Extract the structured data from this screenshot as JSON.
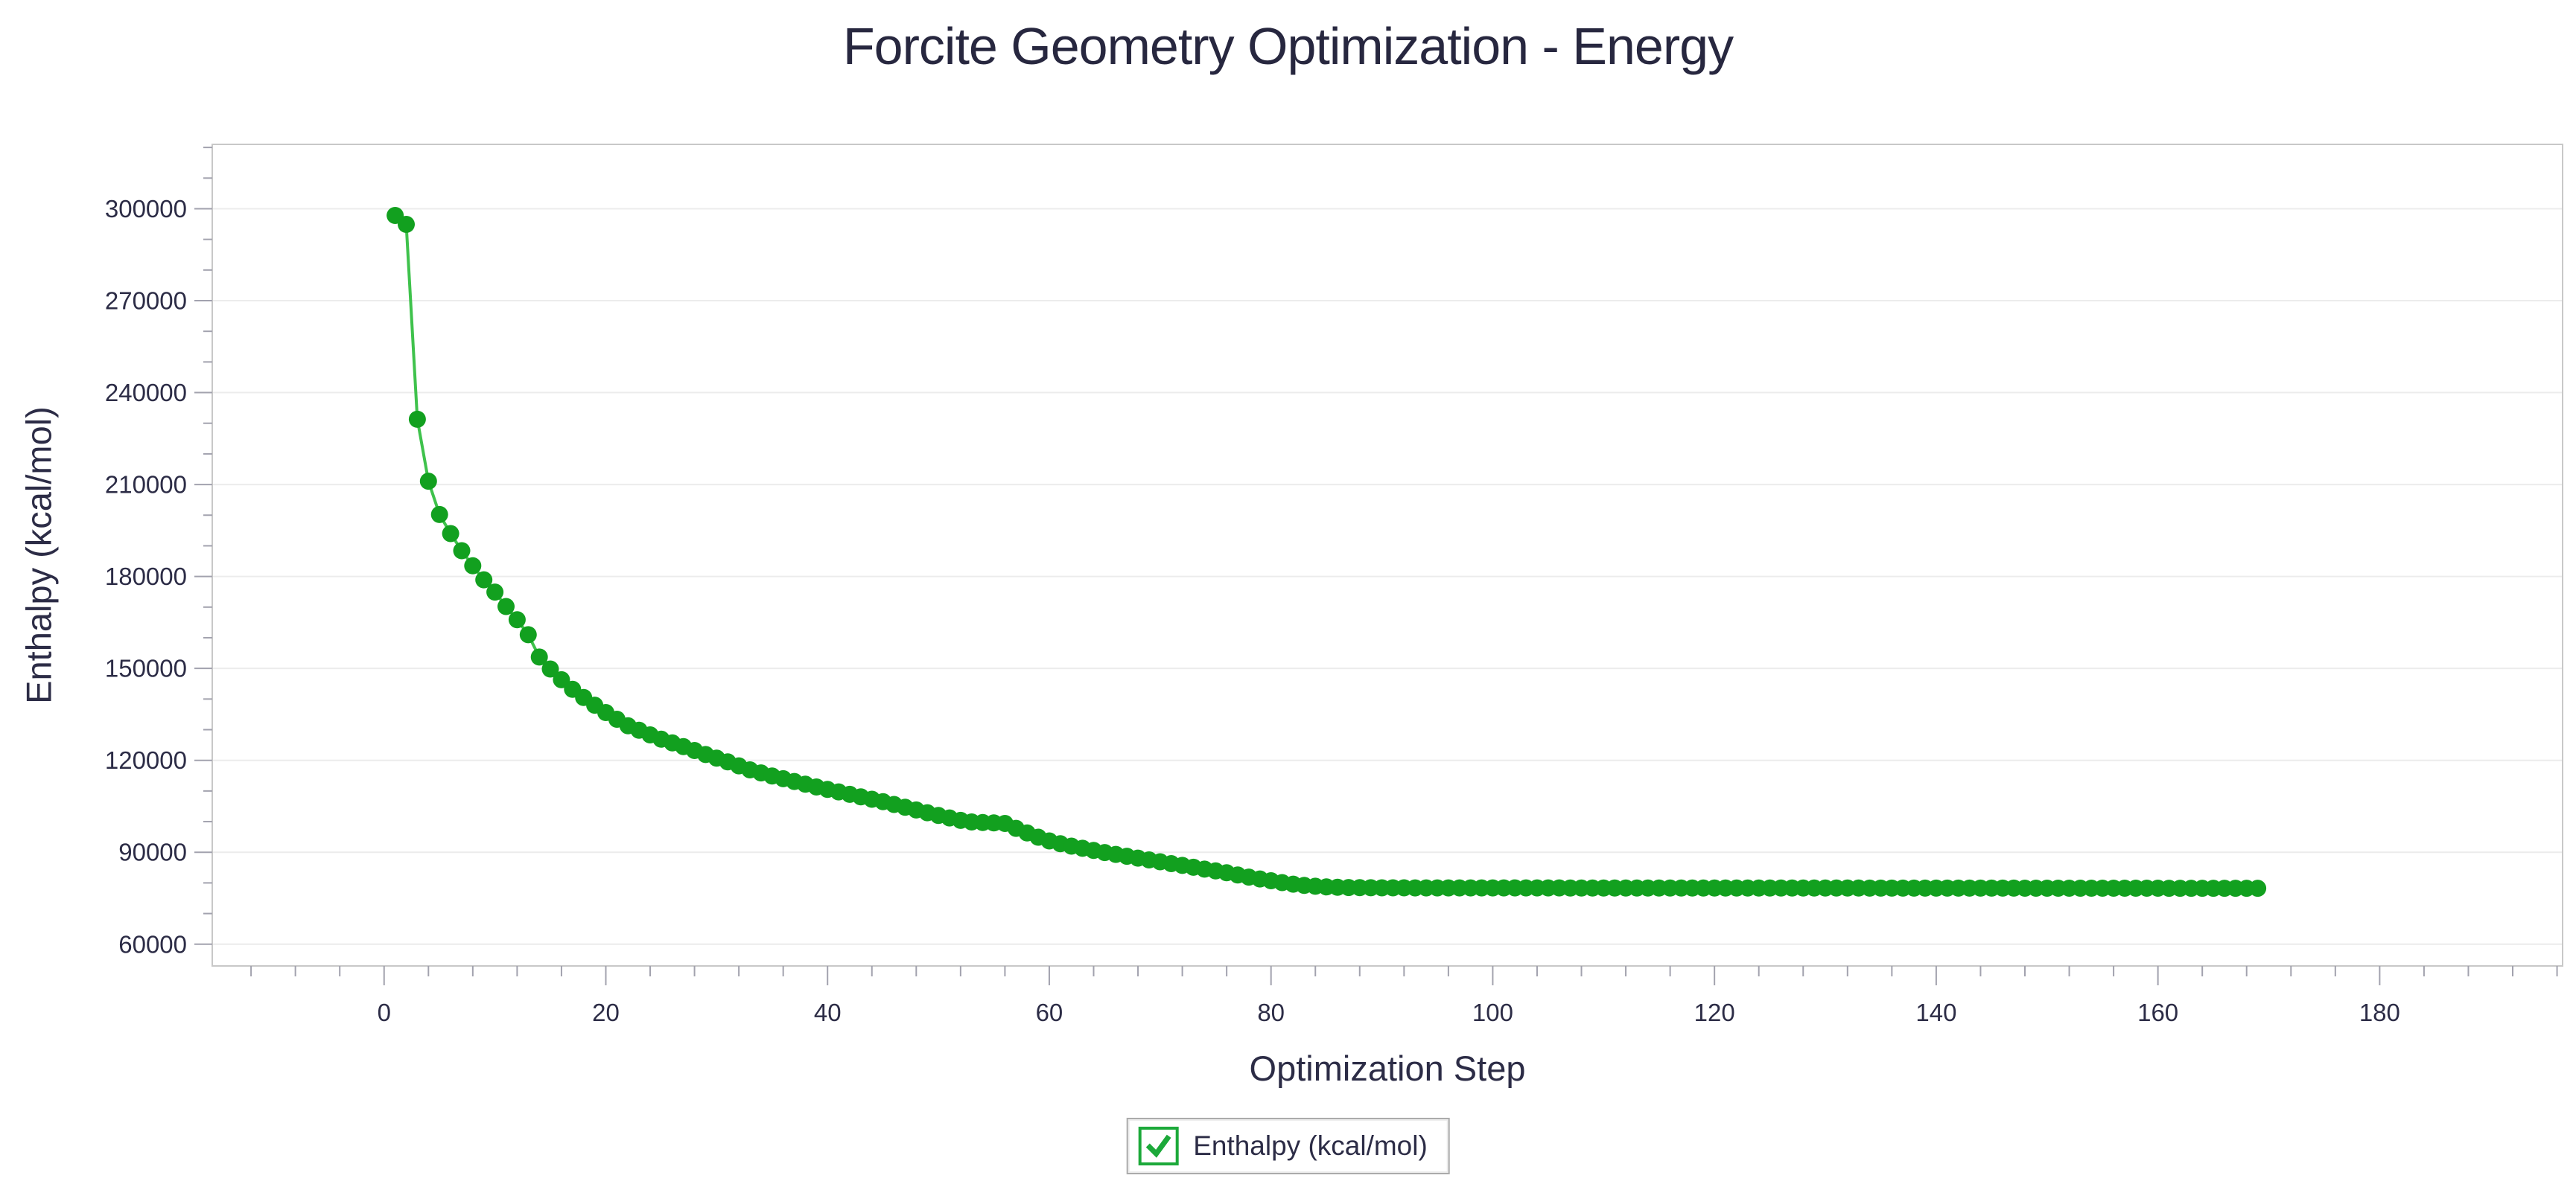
{
  "page": {
    "background": "#ffffff"
  },
  "chart_data": {
    "type": "line",
    "title": "Forcite Geometry Optimization - Energy",
    "xlabel": "Optimization Step",
    "ylabel": "Enthalpy (kcal/mol)",
    "xlim": [
      -15.5,
      196.5
    ],
    "ylim": [
      52900,
      321000
    ],
    "grid": "horizontal-major-only",
    "x_ticks_major": [
      0,
      20,
      40,
      60,
      80,
      100,
      120,
      140,
      160,
      180
    ],
    "x_minor_step": 4,
    "x_minor_range": [
      -12,
      196
    ],
    "y_ticks_major": [
      300000,
      270000,
      240000,
      210000,
      180000,
      150000,
      120000,
      90000,
      60000
    ],
    "y_minor_step": 10000,
    "y_minor_range": [
      70000,
      320000
    ],
    "legend": {
      "position": "bottom-center",
      "checkbox_checked": true,
      "label": "Enthalpy (kcal/mol)"
    },
    "colors": {
      "title_text": "#27273f",
      "axis_text": "#2c2c46",
      "tick_mark": "#a2a2ae",
      "grid_line": "#ececec",
      "plot_frame": "#c8c8c8",
      "series_line": "#3fc24c",
      "series_marker": "#12a01f",
      "checkbox_green": "#1ca93a",
      "legend_border": "#ababab",
      "plot_background": "#ffffff"
    },
    "series": [
      {
        "name": "Enthalpy (kcal/mol)",
        "x_start": 1,
        "x_step": 1,
        "values": [
          297800,
          294900,
          231300,
          211100,
          200200,
          194000,
          188400,
          183500,
          178900,
          174900,
          170200,
          165900,
          161000,
          153700,
          149800,
          146300,
          143200,
          140500,
          138000,
          135600,
          133400,
          131300,
          129800,
          128300,
          126900,
          125700,
          124500,
          123200,
          121900,
          120700,
          119500,
          118200,
          116900,
          115900,
          114900,
          114000,
          113100,
          112200,
          111300,
          110500,
          109700,
          108900,
          108100,
          107300,
          106500,
          105600,
          104700,
          103800,
          102900,
          102000,
          101200,
          100400,
          99900,
          99700,
          99600,
          99400,
          97800,
          96300,
          94900,
          93700,
          92800,
          92000,
          91300,
          90600,
          89900,
          89300,
          88700,
          88100,
          87500,
          86900,
          86300,
          85700,
          85100,
          84500,
          83900,
          83300,
          82600,
          81900,
          81300,
          80700,
          80100,
          79600,
          79200,
          78900,
          78700,
          78600,
          78500,
          78450,
          78420,
          78400,
          78390,
          78388,
          78386,
          78385,
          78383,
          78381,
          78379,
          78377,
          78376,
          78374,
          78372,
          78370,
          78369,
          78367,
          78365,
          78363,
          78361,
          78360,
          78358,
          78356,
          78354,
          78352,
          78351,
          78349,
          78347,
          78345,
          78344,
          78342,
          78340,
          78338,
          78336,
          78335,
          78333,
          78331,
          78329,
          78328,
          78326,
          78324,
          78322,
          78320,
          78319,
          78317,
          78315,
          78313,
          78312,
          78310,
          78308,
          78306,
          78304,
          78303,
          78301,
          78299,
          78297,
          78296,
          78294,
          78292,
          78290,
          78288,
          78287,
          78285,
          78283,
          78281,
          78280,
          78278,
          78276,
          78274,
          78272,
          78271,
          78269,
          78267,
          78265,
          78264,
          78262,
          78260,
          78258,
          78256,
          78255,
          78253,
          78251
        ]
      }
    ]
  }
}
